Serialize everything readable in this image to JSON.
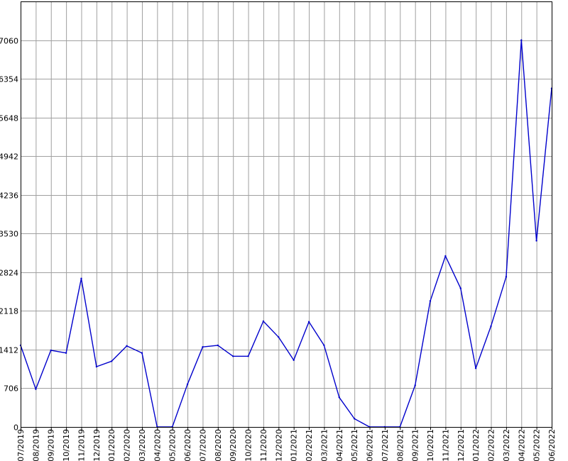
{
  "chart_data": {
    "type": "line",
    "title": "",
    "xlabel": "",
    "ylabel": "",
    "categories": [
      "07/2019",
      "08/2019",
      "09/2019",
      "10/2019",
      "11/2019",
      "12/2019",
      "01/2020",
      "02/2020",
      "03/2020",
      "04/2020",
      "05/2020",
      "06/2020",
      "07/2020",
      "08/2020",
      "09/2020",
      "10/2020",
      "11/2020",
      "12/2020",
      "01/2021",
      "02/2021",
      "03/2021",
      "04/2021",
      "05/2021",
      "06/2021",
      "07/2021",
      "08/2021",
      "09/2021",
      "10/2021",
      "11/2021",
      "12/2021",
      "01/2022",
      "02/2022",
      "03/2022",
      "04/2022",
      "05/2022",
      "06/2022"
    ],
    "series": [
      {
        "values": [
          1490,
          690,
          1400,
          1350,
          2710,
          1100,
          1200,
          1480,
          1350,
          0,
          0,
          780,
          1460,
          1490,
          1290,
          1290,
          1930,
          1640,
          1220,
          1920,
          1490,
          540,
          150,
          0,
          0,
          0,
          760,
          2300,
          3120,
          2530,
          1070,
          1840,
          2740,
          7060,
          3400,
          6180
        ],
        "color": "#0000cc"
      }
    ],
    "yticks": [
      "0",
      "706",
      "1412",
      "2118",
      "2824",
      "3530",
      "4236",
      "4942",
      "5648",
      "6354",
      "7060"
    ],
    "ylim": [
      0,
      7767
    ],
    "grid": true,
    "legend": "none",
    "colors": {
      "line": "#0000cc",
      "grid": "#a0a0a0",
      "axis": "#000000",
      "background": "#ffffff"
    }
  }
}
